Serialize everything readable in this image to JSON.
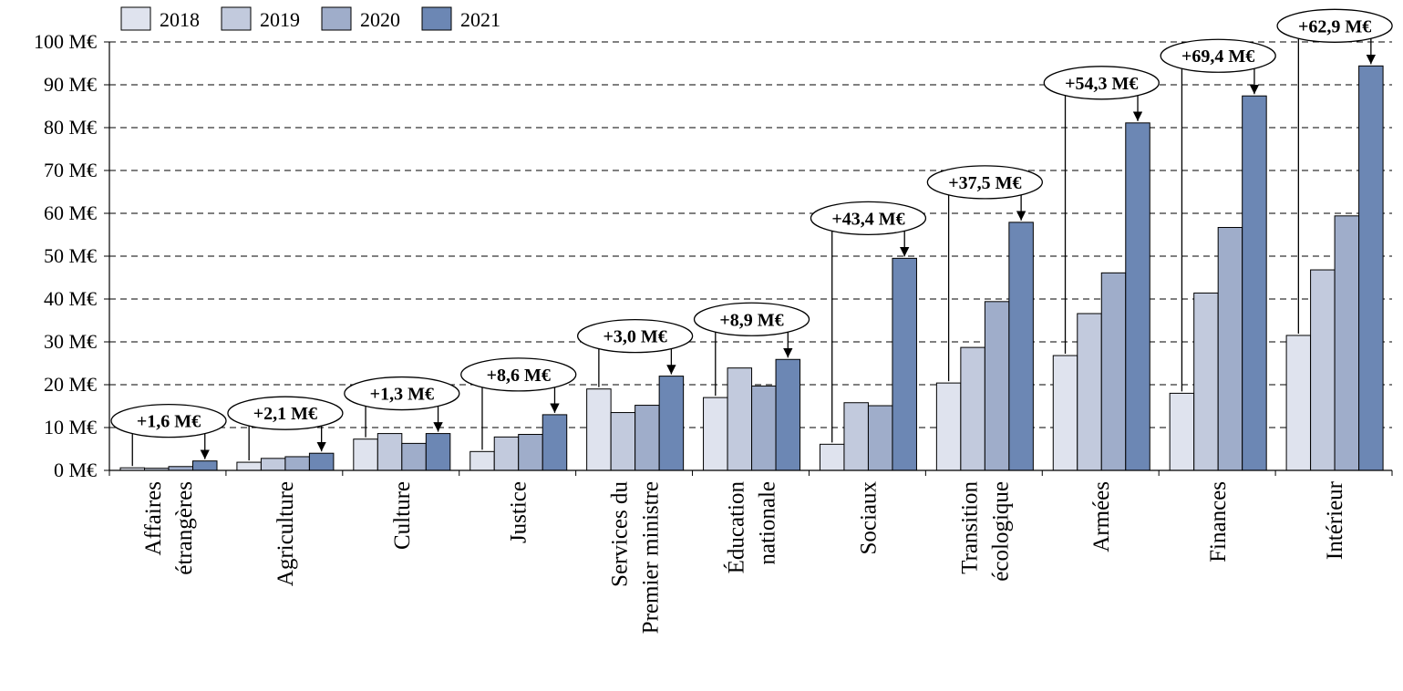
{
  "chart_data": {
    "type": "bar",
    "categories": [
      [
        "Affaires",
        "étrangères"
      ],
      [
        "Agriculture"
      ],
      [
        "Culture"
      ],
      [
        "Justice"
      ],
      [
        "Services du",
        "Premier ministre"
      ],
      [
        "Éducation",
        "nationale"
      ],
      [
        "Sociaux"
      ],
      [
        "Transition",
        "écologique"
      ],
      [
        "Armées"
      ],
      [
        "Finances"
      ],
      [
        "Intérieur"
      ]
    ],
    "series": [
      {
        "name": "2018",
        "color": "#dfe3ee",
        "values": [
          0.6,
          1.9,
          7.3,
          4.4,
          19.0,
          17.0,
          6.1,
          20.4,
          26.8,
          18.0,
          31.5
        ]
      },
      {
        "name": "2019",
        "color": "#c2cadd",
        "values": [
          0.5,
          2.8,
          8.6,
          7.8,
          13.5,
          23.9,
          15.8,
          28.7,
          36.6,
          41.4,
          46.8
        ]
      },
      {
        "name": "2020",
        "color": "#9fadca",
        "values": [
          0.9,
          3.2,
          6.3,
          8.4,
          15.2,
          19.7,
          15.1,
          39.4,
          46.1,
          56.7,
          59.4
        ]
      },
      {
        "name": "2021",
        "color": "#6c87b4",
        "values": [
          2.2,
          4.0,
          8.6,
          13.0,
          22.0,
          25.9,
          49.5,
          57.9,
          81.1,
          87.4,
          94.4
        ]
      }
    ],
    "annotations": [
      "+1,6 M€",
      "+2,1 M€",
      "+1,3 M€",
      "+8,6 M€",
      "+3,0 M€",
      "+8,9 M€",
      "+43,4 M€",
      "+37,5 M€",
      "+54,3 M€",
      "+69,4 M€",
      "+62,9 M€"
    ],
    "y_ticks": [
      "0 M€",
      "10 M€",
      "20 M€",
      "30 M€",
      "40 M€",
      "50 M€",
      "60 M€",
      "70 M€",
      "80 M€",
      "90 M€",
      "100 M€"
    ],
    "ylim": [
      0,
      100
    ],
    "grid": "horizontal dashed",
    "legend": "top-left"
  }
}
